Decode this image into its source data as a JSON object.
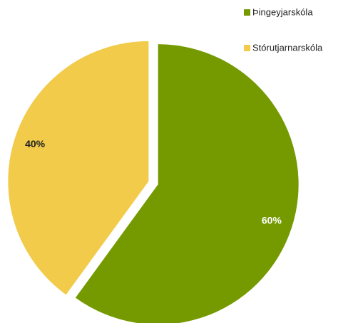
{
  "chart_data": {
    "type": "pie",
    "categories": [
      "Þingeyjarskóla",
      "Stórutjarnarskóla"
    ],
    "values": [
      60,
      40
    ],
    "value_labels": [
      "60%",
      "40%"
    ],
    "colors": [
      "#759a00",
      "#f2cb4a"
    ],
    "legend": "top-right"
  }
}
